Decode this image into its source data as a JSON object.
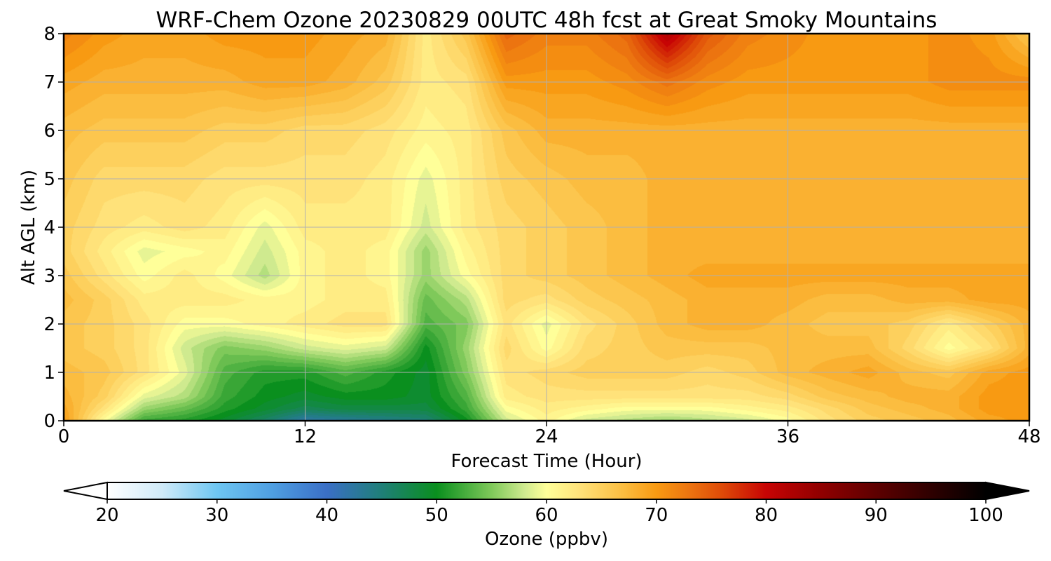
{
  "chart_data": {
    "type": "heatmap",
    "title": "WRF-Chem Ozone  20230829 00UTC 48h fcst at Great Smoky Mountains",
    "xlabel": "Forecast Time (Hour)",
    "ylabel": "Alt AGL (km)",
    "xlim": [
      0,
      48
    ],
    "ylim": [
      0,
      8
    ],
    "x_ticks": [
      0,
      12,
      24,
      36,
      48
    ],
    "y_ticks": [
      0,
      1,
      2,
      3,
      4,
      5,
      6,
      7,
      8
    ],
    "grid": true,
    "colorbar": {
      "label": "Ozone  (ppbv)",
      "range": [
        20,
        100
      ],
      "ticks": [
        20,
        30,
        40,
        50,
        60,
        70,
        80,
        90,
        100
      ],
      "extend": "both",
      "stops": [
        {
          "v": 20,
          "c": "#ffffff"
        },
        {
          "v": 25,
          "c": "#cfeaf8"
        },
        {
          "v": 30,
          "c": "#6ec6f2"
        },
        {
          "v": 35,
          "c": "#4f9fe2"
        },
        {
          "v": 40,
          "c": "#3a6fc6"
        },
        {
          "v": 45,
          "c": "#1f7f78"
        },
        {
          "v": 50,
          "c": "#0a8f1e"
        },
        {
          "v": 55,
          "c": "#7fc95a"
        },
        {
          "v": 58,
          "c": "#cfea8f"
        },
        {
          "v": 60,
          "c": "#ffff99"
        },
        {
          "v": 63,
          "c": "#ffe27a"
        },
        {
          "v": 67,
          "c": "#fbbd40"
        },
        {
          "v": 70,
          "c": "#f89a12"
        },
        {
          "v": 73,
          "c": "#ec7410"
        },
        {
          "v": 76,
          "c": "#de4a08"
        },
        {
          "v": 80,
          "c": "#c70404"
        },
        {
          "v": 85,
          "c": "#900000"
        },
        {
          "v": 90,
          "c": "#5e0000"
        },
        {
          "v": 100,
          "c": "#000000"
        }
      ]
    },
    "field": {
      "x": [
        0,
        2,
        4,
        6,
        8,
        10,
        12,
        14,
        16,
        18,
        20,
        22,
        24,
        26,
        28,
        30,
        32,
        34,
        36,
        38,
        40,
        42,
        44,
        46,
        48
      ],
      "y": [
        0,
        0.25,
        0.5,
        1,
        1.5,
        2,
        2.5,
        3,
        3.5,
        4,
        5,
        6,
        7,
        8
      ],
      "ozone_ppbv": [
        [
          70,
          60,
          52,
          51,
          49,
          46,
          42,
          43,
          44,
          45,
          50,
          58,
          61,
          58,
          57,
          56,
          57,
          58,
          60,
          63,
          65,
          66,
          67,
          69,
          70
        ],
        [
          69,
          63,
          56,
          54,
          51,
          49,
          47,
          48,
          48,
          48,
          52,
          60,
          62,
          61,
          60,
          60,
          60,
          61,
          62,
          64,
          66,
          67,
          68,
          70,
          70
        ],
        [
          68,
          65,
          59,
          57,
          52,
          50,
          49,
          50,
          50,
          49,
          53,
          62,
          63,
          63,
          63,
          63,
          63,
          63,
          64,
          66,
          67,
          68,
          68,
          70,
          70
        ],
        [
          67,
          66,
          63,
          59,
          53,
          51,
          51,
          53,
          51,
          49,
          55,
          63,
          64,
          65,
          65,
          65,
          64,
          65,
          67,
          68,
          69,
          67,
          66,
          69,
          70
        ],
        [
          66,
          65,
          63,
          58,
          55,
          56,
          58,
          59,
          58,
          50,
          56,
          64,
          60,
          64,
          65,
          66,
          66,
          66,
          67,
          67,
          67,
          64,
          60,
          63,
          68
        ],
        [
          66,
          65,
          63,
          60,
          60,
          61,
          62,
          63,
          63,
          53,
          55,
          63,
          59,
          63,
          65,
          67,
          68,
          68,
          67,
          66,
          66,
          65,
          62,
          65,
          68
        ],
        [
          67,
          65,
          62,
          62,
          62,
          61,
          61,
          62,
          62,
          54,
          57,
          64,
          63,
          65,
          66,
          67,
          68,
          68,
          68,
          67,
          67,
          68,
          68,
          69,
          69
        ],
        [
          66,
          63,
          60,
          62,
          60,
          57,
          61,
          62,
          61,
          56,
          60,
          64,
          65,
          66,
          67,
          68,
          69,
          69,
          69,
          69,
          69,
          69,
          69,
          69,
          69
        ],
        [
          65,
          62,
          59,
          60,
          61,
          58,
          61,
          62,
          61,
          56,
          61,
          64,
          65,
          66,
          67,
          68,
          68,
          68,
          68,
          68,
          68,
          68,
          68,
          68,
          68
        ],
        [
          65,
          63,
          62,
          63,
          62,
          59,
          62,
          62,
          62,
          58,
          62,
          64,
          65,
          66,
          67,
          68,
          68,
          68,
          68,
          68,
          68,
          68,
          68,
          68,
          68
        ],
        [
          66,
          64,
          64,
          64,
          63,
          63,
          63,
          63,
          62,
          59,
          62,
          65,
          66,
          67,
          67,
          68,
          68,
          68,
          68,
          68,
          68,
          68,
          68,
          68,
          68
        ],
        [
          67,
          66,
          66,
          66,
          65,
          65,
          64,
          64,
          63,
          61,
          62,
          66,
          68,
          68,
          68,
          68,
          68,
          68,
          68,
          68,
          68,
          68,
          68,
          68,
          68
        ],
        [
          69,
          68,
          68,
          68,
          68,
          69,
          69,
          68,
          66,
          62,
          63,
          70,
          70,
          70,
          71,
          73,
          71,
          70,
          70,
          70,
          70,
          70,
          71,
          71,
          71
        ],
        [
          72,
          70,
          69,
          69,
          70,
          70,
          70,
          69,
          68,
          62,
          66,
          74,
          72,
          72,
          74,
          82,
          75,
          72,
          71,
          70,
          70,
          70,
          71,
          70,
          66
        ]
      ]
    }
  }
}
